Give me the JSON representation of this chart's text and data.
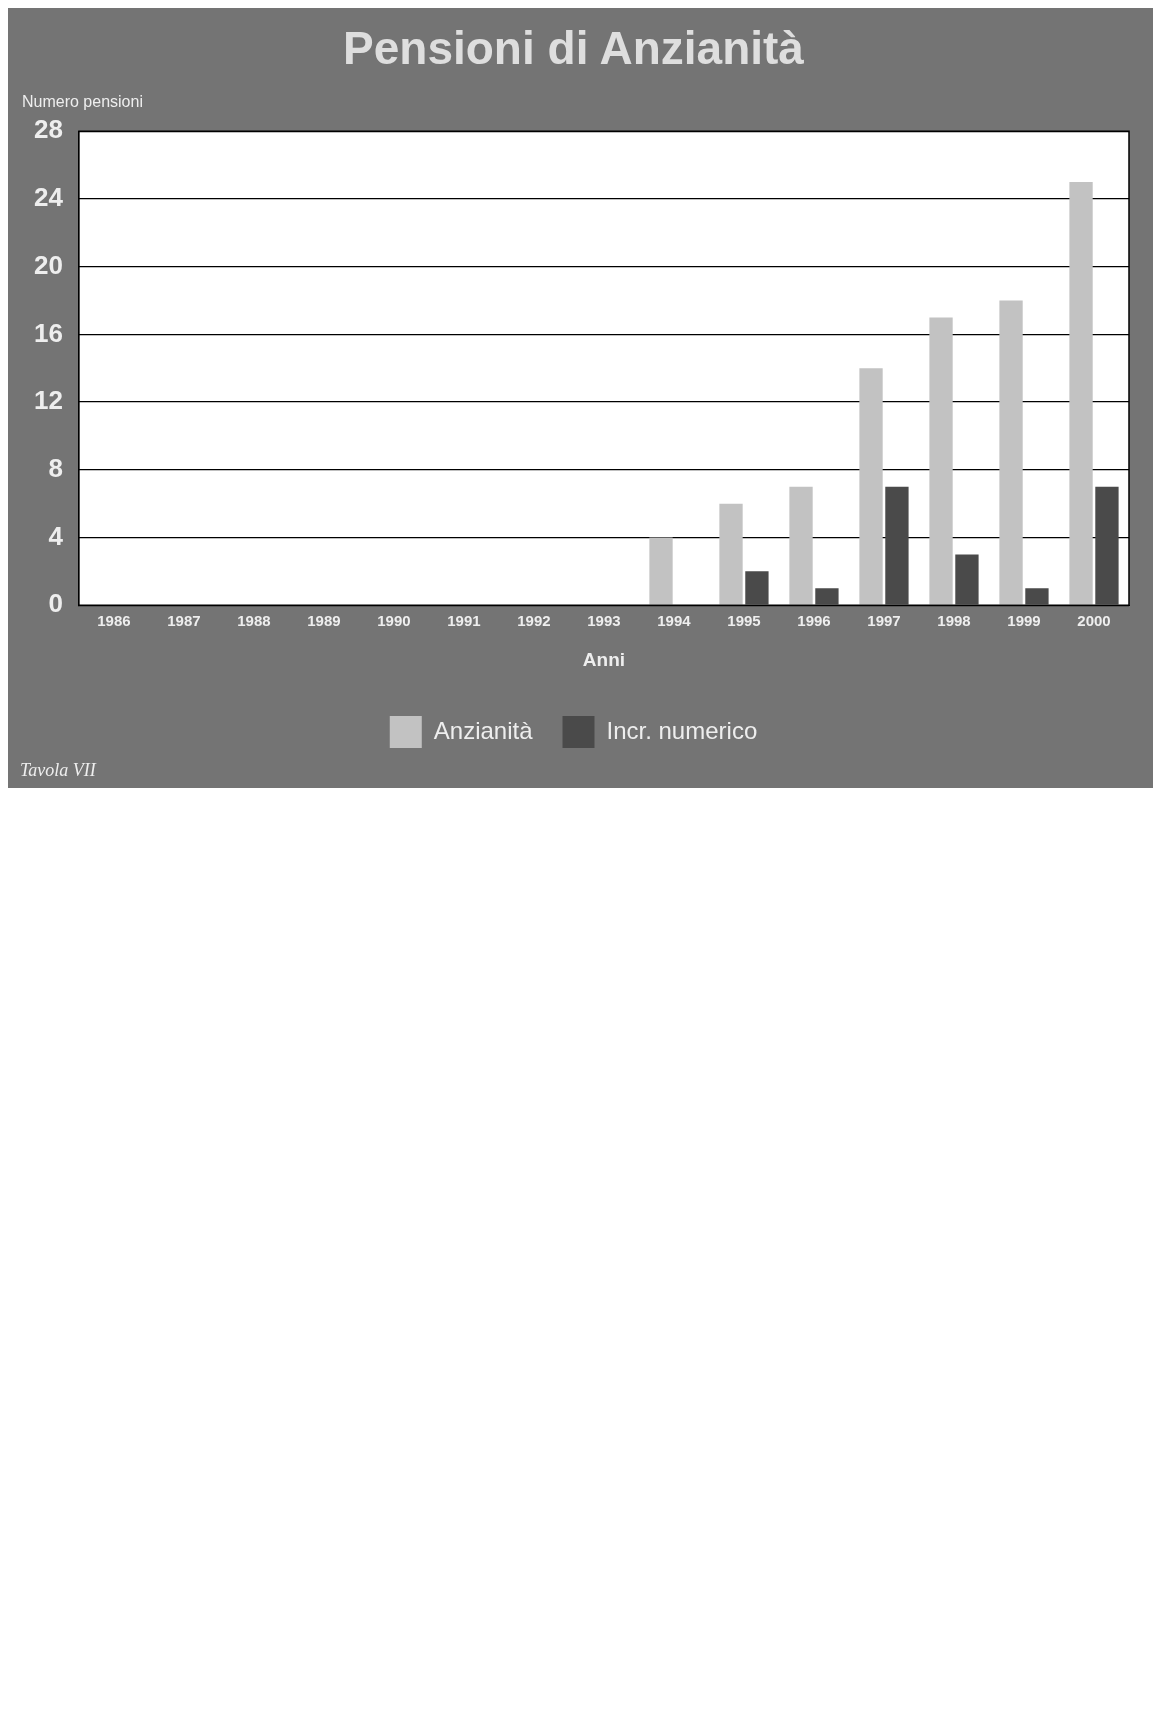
{
  "chart_data": {
    "type": "bar",
    "title": "Pensioni di Anzianità",
    "ylabel": "Numero pensioni",
    "xlabel": "Anni",
    "categories": [
      "1986",
      "1987",
      "1988",
      "1989",
      "1990",
      "1991",
      "1992",
      "1993",
      "1994",
      "1995",
      "1996",
      "1997",
      "1998",
      "1999",
      "2000"
    ],
    "series": [
      {
        "name": "Anzianità",
        "color": "#c2c2c2",
        "values": [
          null,
          null,
          null,
          null,
          null,
          null,
          null,
          null,
          4,
          6,
          7,
          14,
          17,
          18,
          25
        ]
      },
      {
        "name": "Incr. numerico",
        "color": "#4a4a4a",
        "values": [
          null,
          null,
          null,
          null,
          null,
          null,
          null,
          null,
          null,
          2,
          1,
          7,
          3,
          1,
          7
        ]
      }
    ],
    "ylim": [
      0,
      28
    ],
    "yticks": [
      0,
      4,
      8,
      12,
      16,
      20,
      24,
      28
    ],
    "grid": "y",
    "legend": "bottom",
    "annotations": [
      "Tavola VII"
    ]
  }
}
